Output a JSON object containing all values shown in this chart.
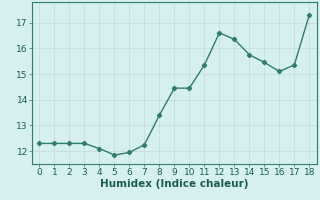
{
  "x": [
    0,
    1,
    2,
    3,
    4,
    5,
    6,
    7,
    8,
    9,
    10,
    11,
    12,
    13,
    14,
    15,
    16,
    17,
    18
  ],
  "y": [
    12.3,
    12.3,
    12.3,
    12.3,
    12.1,
    11.85,
    11.95,
    12.25,
    13.4,
    14.45,
    14.45,
    15.35,
    16.6,
    16.35,
    15.75,
    15.45,
    15.1,
    15.35,
    17.3
  ],
  "line_color": "#2e7d6e",
  "marker": "D",
  "marker_size": 2.2,
  "bg_color": "#d6f0ef",
  "grid_color": "#c8dedc",
  "xlabel": "Humidex (Indice chaleur)",
  "xlim": [
    -0.5,
    18.5
  ],
  "ylim": [
    11.5,
    17.8
  ],
  "yticks": [
    12,
    13,
    14,
    15,
    16,
    17
  ],
  "xticks": [
    0,
    1,
    2,
    3,
    4,
    5,
    6,
    7,
    8,
    9,
    10,
    11,
    12,
    13,
    14,
    15,
    16,
    17,
    18
  ],
  "xlabel_fontsize": 7.5,
  "tick_fontsize": 6.5,
  "line_width": 1.0
}
